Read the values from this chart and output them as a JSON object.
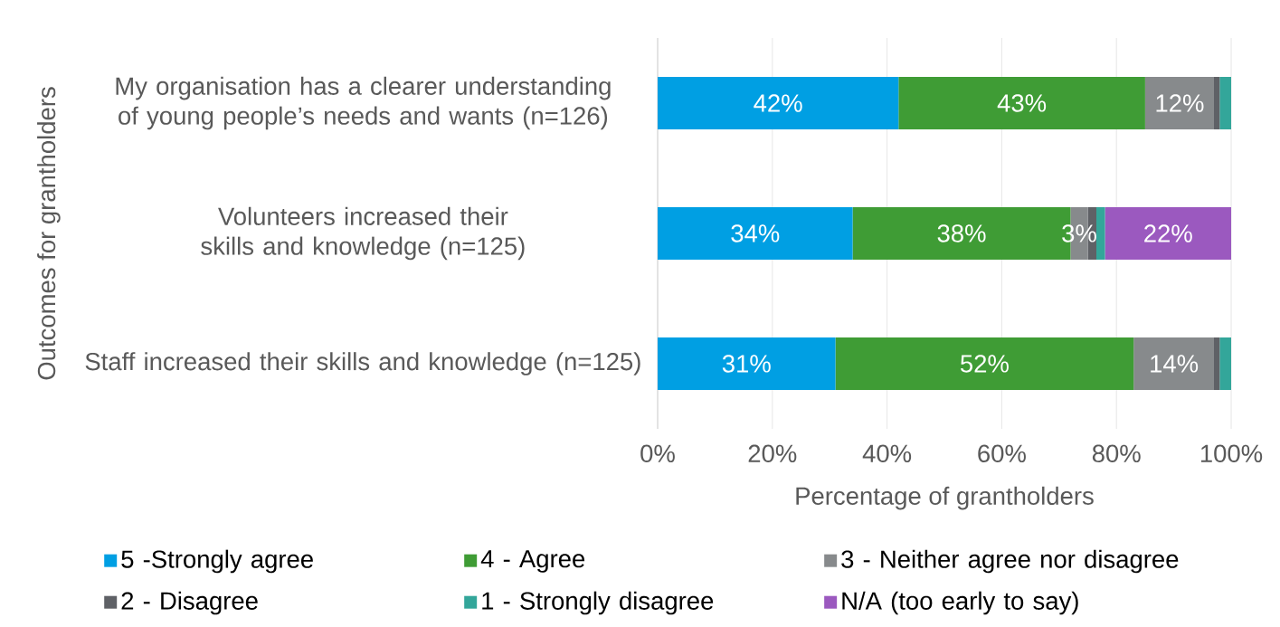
{
  "chart_data": {
    "type": "bar",
    "orientation": "horizontal",
    "stacked": true,
    "xlabel": "Percentage of grantholders",
    "ylabel": "Outcomes for grantholders",
    "categories": [
      "My organisation has a clearer understanding of young people’s needs and wants (n=126)",
      "Volunteers increased their skills and knowledge (n=125)",
      "Staff increased their skills and knowledge (n=125)"
    ],
    "series": [
      {
        "name": "5 -Strongly agree",
        "color": "#009fe3",
        "values": [
          42,
          34,
          31
        ],
        "value_labels": [
          "42%",
          "34%",
          "31%"
        ]
      },
      {
        "name": "4 - Agree",
        "color": "#3f9c35",
        "values": [
          43,
          38,
          52
        ],
        "value_labels": [
          "43%",
          "38%",
          "52%"
        ]
      },
      {
        "name": "3 - Neither agree nor disagree",
        "color": "#878a8c",
        "values": [
          12,
          3,
          14
        ],
        "value_labels": [
          "12%",
          "3%",
          "14%"
        ]
      },
      {
        "name": "2 - Disagree",
        "color": "#5f6166",
        "values": [
          1,
          1.5,
          1
        ],
        "value_labels": [
          null,
          null,
          null
        ]
      },
      {
        "name": "1 - Strongly disagree",
        "color": "#33a69a",
        "values": [
          2,
          1.5,
          2
        ],
        "value_labels": [
          null,
          null,
          null
        ]
      },
      {
        "name": "N/A (too early to say)",
        "color": "#9b59bf",
        "values": [
          0,
          22,
          0
        ],
        "value_labels": [
          null,
          "22%",
          null
        ]
      }
    ],
    "xlim": [
      0,
      100
    ],
    "xticks": [
      {
        "value": 0,
        "label": "0%"
      },
      {
        "value": 20,
        "label": "20%"
      },
      {
        "value": 40,
        "label": "40%"
      },
      {
        "value": 60,
        "label": "60%"
      },
      {
        "value": 80,
        "label": "80%"
      },
      {
        "value": 100,
        "label": "100%"
      }
    ],
    "grid": "x",
    "legend": "bottom"
  }
}
